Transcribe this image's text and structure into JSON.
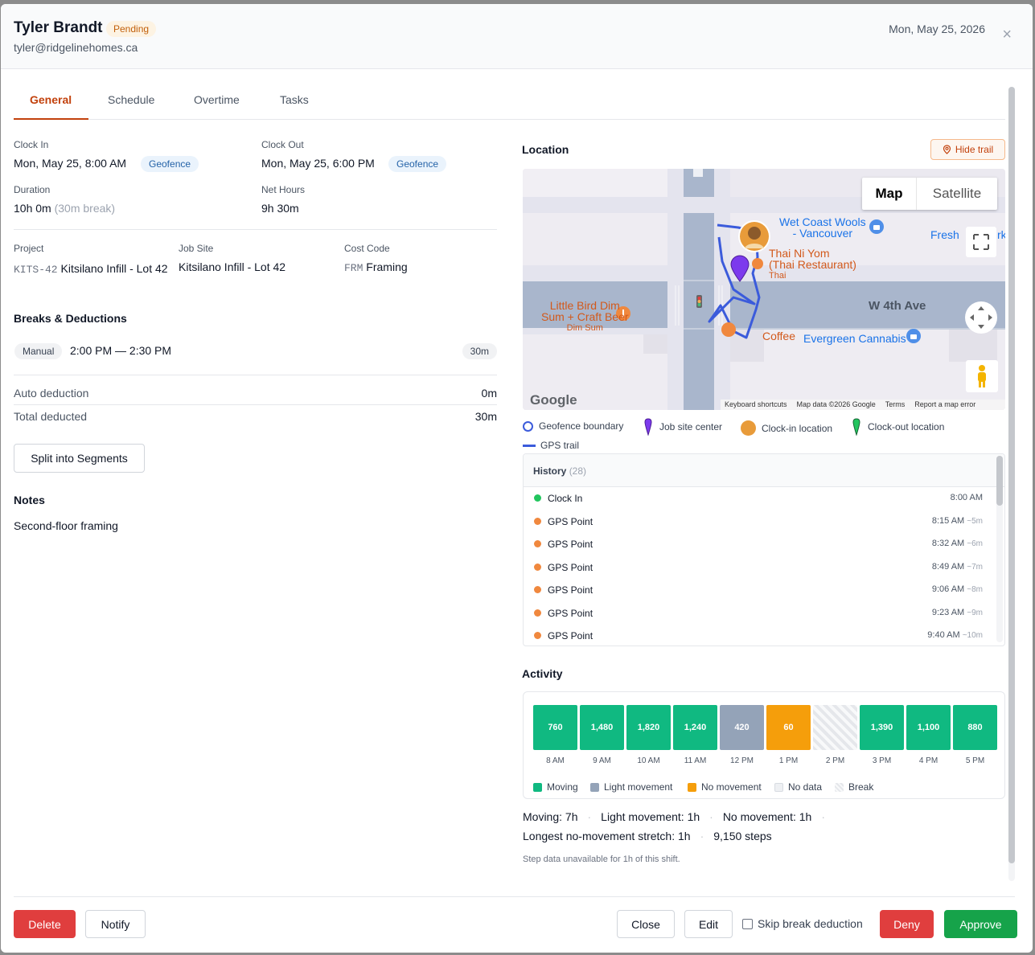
{
  "header": {
    "name": "Tyler Brandt",
    "status": "Pending",
    "email": "tyler@ridgelinehomes.ca",
    "date": "Mon, May 25, 2026",
    "close_glyph": "×"
  },
  "tabs": [
    {
      "label": "General"
    },
    {
      "label": "Schedule"
    },
    {
      "label": "Overtime"
    },
    {
      "label": "Tasks"
    }
  ],
  "general": {
    "clock_in_label": "Clock In",
    "clock_in_value": "Mon, May 25, 8:00 AM",
    "clock_in_method": "Geofence",
    "clock_out_label": "Clock Out",
    "clock_out_value": "Mon, May 25, 6:00 PM",
    "clock_out_method": "Geofence",
    "duration_label": "Duration",
    "duration_value": "10h 0m",
    "duration_break": "(30m break)",
    "net_hours_label": "Net Hours",
    "net_hours_value": "9h 30m",
    "project_label": "Project",
    "project_code": "KITS-42",
    "project_name": "Kitsilano Infill - Lot 42",
    "job_site_label": "Job Site",
    "job_site_value": "Kitsilano Infill - Lot 42",
    "cost_code_label": "Cost Code",
    "cost_code_code": "FRM",
    "cost_code_name": "Framing"
  },
  "breaks": {
    "title": "Breaks & Deductions",
    "items": [
      {
        "type": "Manual",
        "range": "2:00 PM — 2:30 PM",
        "duration": "30m"
      }
    ],
    "auto_deduction_label": "Auto deduction",
    "auto_deduction_value": "0m",
    "total_deducted_label": "Total deducted",
    "total_deducted_value": "30m",
    "split_button": "Split into Segments"
  },
  "notes": {
    "title": "Notes",
    "text": "Second-floor framing"
  },
  "location": {
    "title": "Location",
    "hide_trail": "Hide trail",
    "map": {
      "map_type_map": "Map",
      "map_type_satellite": "Satellite",
      "places": [
        "Wet Coast Wools",
        "- Vancouver",
        "Fresh",
        "rk",
        "Thai Ni Yom",
        "(Thai Restaurant)",
        "Thai",
        "Little Bird Dim",
        "Sum + Craft Beer",
        "Dim Sum",
        "Coffee",
        "Evergreen Cannabis",
        "W 4th Ave"
      ],
      "logo": "Google",
      "attributions": [
        "Keyboard shortcuts",
        "Map data ©2026 Google",
        "Terms",
        "Report a map error"
      ]
    },
    "legend": [
      "Geofence boundary",
      "Job site center",
      "Clock-in location",
      "Clock-out location",
      "GPS trail"
    ]
  },
  "history": {
    "title": "History",
    "count": "(28)",
    "rows": [
      {
        "label": "Clock In",
        "time": "8:00 AM",
        "gap": "",
        "color": "#22c55e"
      },
      {
        "label": "GPS Point",
        "time": "8:15 AM",
        "gap": "~5m",
        "color": "#f0883e"
      },
      {
        "label": "GPS Point",
        "time": "8:32 AM",
        "gap": "~6m",
        "color": "#f0883e"
      },
      {
        "label": "GPS Point",
        "time": "8:49 AM",
        "gap": "~7m",
        "color": "#f0883e"
      },
      {
        "label": "GPS Point",
        "time": "9:06 AM",
        "gap": "~8m",
        "color": "#f0883e"
      },
      {
        "label": "GPS Point",
        "time": "9:23 AM",
        "gap": "~9m",
        "color": "#f0883e"
      },
      {
        "label": "GPS Point",
        "time": "9:40 AM",
        "gap": "~10m",
        "color": "#f0883e"
      }
    ]
  },
  "activity": {
    "title": "Activity",
    "bars": [
      {
        "hour": "8 AM",
        "steps": "760",
        "kind": "moving"
      },
      {
        "hour": "9 AM",
        "steps": "1,480",
        "kind": "moving"
      },
      {
        "hour": "10 AM",
        "steps": "1,820",
        "kind": "moving"
      },
      {
        "hour": "11 AM",
        "steps": "1,240",
        "kind": "moving"
      },
      {
        "hour": "12 PM",
        "steps": "420",
        "kind": "light"
      },
      {
        "hour": "1 PM",
        "steps": "60",
        "kind": "none"
      },
      {
        "hour": "2 PM",
        "steps": "",
        "kind": "break"
      },
      {
        "hour": "3 PM",
        "steps": "1,390",
        "kind": "moving"
      },
      {
        "hour": "4 PM",
        "steps": "1,100",
        "kind": "moving"
      },
      {
        "hour": "5 PM",
        "steps": "880",
        "kind": "moving"
      }
    ],
    "legend": [
      "Moving",
      "Light movement",
      "No movement",
      "No data",
      "Break"
    ],
    "colors": {
      "moving": "#10b981",
      "light": "#94a3b8",
      "none": "#f59e0b"
    },
    "stats": {
      "moving_label": "Moving:",
      "moving_value": "7h",
      "light_label": "Light movement:",
      "light_value": "1h",
      "none_label": "No movement:",
      "none_value": "1h",
      "longest_label": "Longest no-movement stretch:",
      "longest_value": "1h",
      "steps": "9,150 steps",
      "note": "Step data unavailable for 1h of this shift."
    }
  },
  "footer": {
    "delete": "Delete",
    "notify": "Notify",
    "close": "Close",
    "edit": "Edit",
    "skip_break": "Skip break deduction",
    "deny": "Deny",
    "approve": "Approve"
  }
}
